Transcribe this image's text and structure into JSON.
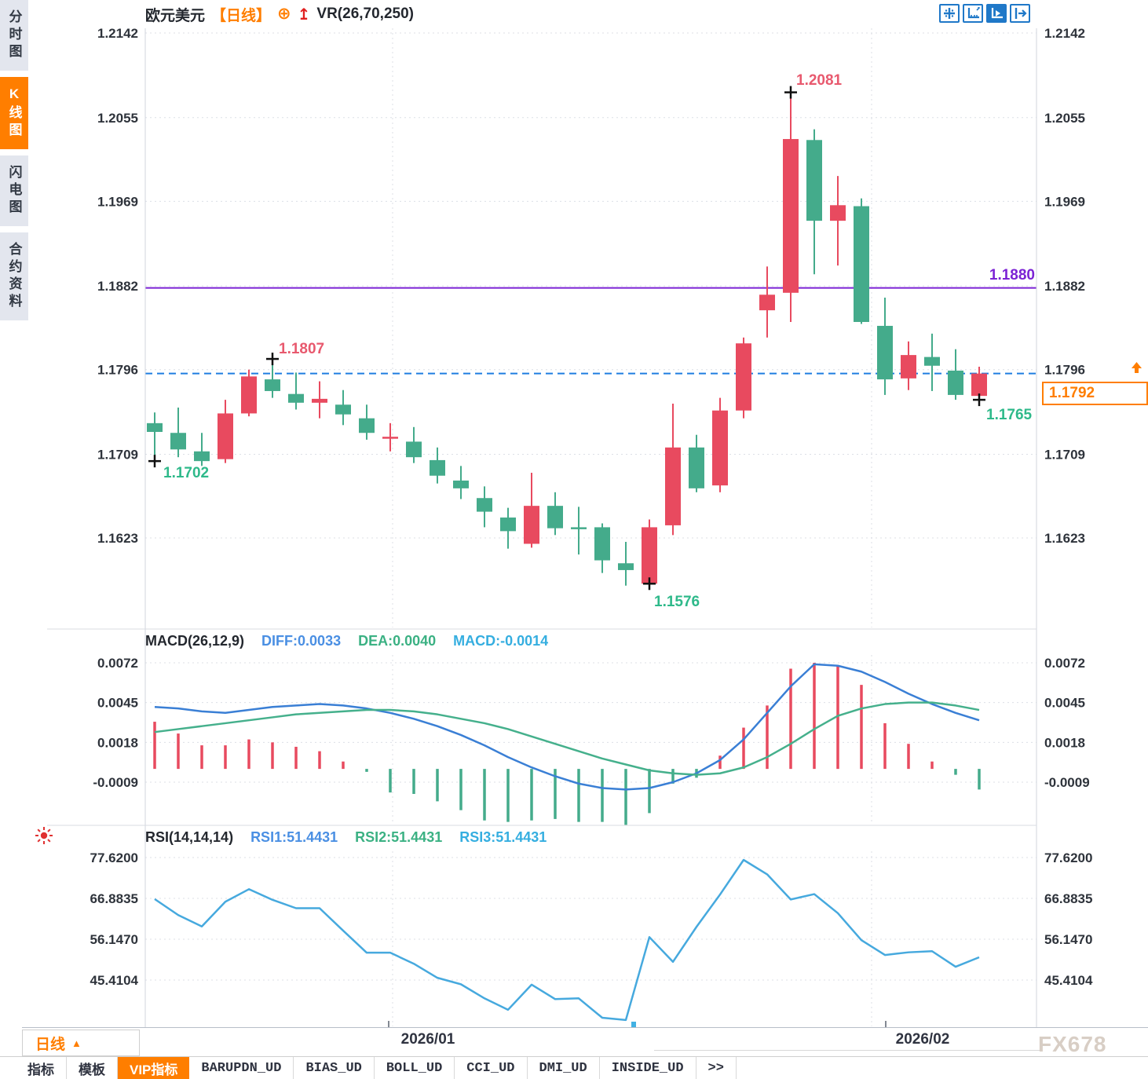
{
  "header": {
    "symbol": "欧元美元",
    "period": "【日线】",
    "indicator": "VR(26,70,250)"
  },
  "sidebar": {
    "items": [
      {
        "label": "分时图",
        "active": false
      },
      {
        "label": "K线图",
        "active": true
      },
      {
        "label": "闪电图",
        "active": false
      },
      {
        "label": "合约资料",
        "active": false
      }
    ]
  },
  "toolbar": {
    "icons": [
      "crosshair-move",
      "axis-range",
      "axis-play-active",
      "pan-to-latest"
    ]
  },
  "macd_panel": {
    "title": "MACD(26,12,9)",
    "diff_label": "DIFF:0.0033",
    "dea_label": "DEA:0.0040",
    "macd_label": "MACD:-0.0014"
  },
  "rsi_panel": {
    "title": "RSI(14,14,14)",
    "rsi1_label": "RSI1:51.4431",
    "rsi2_label": "RSI2:51.4431",
    "rsi3_label": "RSI3:51.4431"
  },
  "x_axis": {
    "dates": [
      "2026/01",
      "2026/02"
    ]
  },
  "period_selector": {
    "label": "日线",
    "arrow": "▲"
  },
  "bottom_tabs": [
    {
      "label": "指标",
      "active": false
    },
    {
      "label": "模板",
      "active": false
    },
    {
      "label": "VIP指标",
      "active": true
    },
    {
      "label": "BARUPDN_UD",
      "active": false
    },
    {
      "label": "BIAS_UD",
      "active": false
    },
    {
      "label": "BOLL_UD",
      "active": false
    },
    {
      "label": "CCI_UD",
      "active": false
    },
    {
      "label": "DMI_UD",
      "active": false
    },
    {
      "label": "INSIDE_UD",
      "active": false
    },
    {
      "label": ">>",
      "active": false
    }
  ],
  "watermark": "FX678",
  "colors": {
    "up": "#e84a5f",
    "down": "#44ab8b",
    "diff_line": "#3a7fd5",
    "dea_line": "#45b08c",
    "rsi_line": "#46a9de",
    "orange": "#ff7e00",
    "purple": "#7b22d4",
    "last_price_line": "#1f7de0",
    "grid": "#dcdfe6",
    "axis_text": "#2e333b"
  },
  "chart_data": [
    {
      "type": "candlestick",
      "title": "欧元美元 日线",
      "ylim": [
        1.155,
        1.216
      ],
      "y_ticks": [
        1.2142,
        1.2055,
        1.1969,
        1.1882,
        1.1796,
        1.1709,
        1.1623
      ],
      "y_tick_labels": [
        "1.2142",
        "1.2055",
        "1.1969",
        "1.1882",
        "1.1796",
        "1.1709",
        "1.1623"
      ],
      "x_tick_labels": [
        "2026/01",
        "2026/02"
      ],
      "levels": {
        "horizontal_line": 1.188,
        "horizontal_line_label": "1.1880",
        "last_price": 1.1792,
        "last_price_label": "1.1792"
      },
      "series": {
        "open": [
          1.1741,
          1.1731,
          1.1712,
          1.1704,
          1.1751,
          1.1786,
          1.1771,
          1.1762,
          1.176,
          1.1746,
          1.1725,
          1.1722,
          1.1703,
          1.1682,
          1.1664,
          1.1644,
          1.1617,
          1.1656,
          1.1634,
          1.1634,
          1.1597,
          1.1576,
          1.1636,
          1.1716,
          1.1677,
          1.1754,
          1.1857,
          1.1875,
          1.2032,
          1.1949,
          1.1964,
          1.1841,
          1.1787,
          1.1809,
          1.1795,
          1.1769
        ],
        "high": [
          1.1752,
          1.1757,
          1.1731,
          1.1765,
          1.1796,
          1.1807,
          1.1793,
          1.1784,
          1.1775,
          1.176,
          1.1741,
          1.1737,
          1.1716,
          1.1697,
          1.1676,
          1.1654,
          1.169,
          1.167,
          1.1655,
          1.1638,
          1.1619,
          1.1642,
          1.1761,
          1.1729,
          1.1767,
          1.1829,
          1.1902,
          1.2081,
          1.2043,
          1.1995,
          1.1972,
          1.187,
          1.1825,
          1.1833,
          1.1817,
          1.1799
        ],
        "low": [
          1.1702,
          1.1706,
          1.1697,
          1.17,
          1.1748,
          1.1767,
          1.1755,
          1.1746,
          1.1739,
          1.1724,
          1.1712,
          1.17,
          1.1679,
          1.1663,
          1.1634,
          1.1612,
          1.1613,
          1.1626,
          1.1606,
          1.1587,
          1.1574,
          1.1576,
          1.1626,
          1.167,
          1.167,
          1.1746,
          1.1829,
          1.1845,
          1.1894,
          1.1903,
          1.1843,
          1.177,
          1.1775,
          1.1774,
          1.1765,
          1.1765
        ],
        "close": [
          1.1732,
          1.1714,
          1.1702,
          1.1751,
          1.1789,
          1.1774,
          1.1762,
          1.1766,
          1.175,
          1.1731,
          1.1727,
          1.1706,
          1.1687,
          1.1674,
          1.165,
          1.163,
          1.1656,
          1.1633,
          1.1633,
          1.16,
          1.159,
          1.1634,
          1.1716,
          1.1674,
          1.1754,
          1.1823,
          1.1873,
          1.2033,
          1.1949,
          1.1965,
          1.1845,
          1.1786,
          1.1811,
          1.18,
          1.177,
          1.1792
        ]
      },
      "annotations": [
        {
          "index": 0,
          "price": 1.1702,
          "text": "1.1702",
          "kind": "low"
        },
        {
          "index": 5,
          "price": 1.1807,
          "text": "1.1807",
          "kind": "high"
        },
        {
          "index": 21,
          "price": 1.1576,
          "text": "1.1576",
          "kind": "low"
        },
        {
          "index": 27,
          "price": 1.2081,
          "text": "1.2081",
          "kind": "high"
        },
        {
          "index": 35,
          "price": 1.1765,
          "text": "1.1765",
          "kind": "low"
        }
      ]
    },
    {
      "type": "bar",
      "name": "MACD(26,12,9)",
      "diff_value": 0.0033,
      "dea_value": 0.004,
      "macd_value": -0.0014,
      "ylim": [
        -0.004,
        0.0075
      ],
      "y_ticks": [
        0.0072,
        0.0045,
        0.0018,
        -0.0009
      ],
      "y_tick_labels": [
        "0.0072",
        "0.0045",
        "0.0018",
        "-0.0009"
      ],
      "histogram": [
        0.0032,
        0.0024,
        0.0016,
        0.0016,
        0.002,
        0.0018,
        0.0015,
        0.0012,
        0.0005,
        -0.0002,
        -0.0016,
        -0.0017,
        -0.0022,
        -0.0028,
        -0.0035,
        -0.0036,
        -0.0035,
        -0.0034,
        -0.0036,
        -0.0036,
        -0.0038,
        -0.003,
        -0.001,
        -0.0006,
        0.0009,
        0.0028,
        0.0043,
        0.0068,
        0.0072,
        0.007,
        0.0057,
        0.0031,
        0.0017,
        0.0005,
        -0.0004,
        -0.0014
      ],
      "diff": [
        0.0042,
        0.0041,
        0.0039,
        0.0038,
        0.004,
        0.0042,
        0.0043,
        0.0044,
        0.0043,
        0.0041,
        0.0038,
        0.0034,
        0.0029,
        0.0023,
        0.0016,
        0.0008,
        0.0001,
        -0.0005,
        -0.001,
        -0.0013,
        -0.0014,
        -0.0013,
        -0.0009,
        -0.0003,
        0.0006,
        0.002,
        0.0038,
        0.0056,
        0.0071,
        0.007,
        0.0066,
        0.0059,
        0.0051,
        0.0044,
        0.0038,
        0.0033
      ],
      "dea": [
        0.0025,
        0.0027,
        0.0029,
        0.0031,
        0.0033,
        0.0035,
        0.0037,
        0.0038,
        0.0039,
        0.004,
        0.004,
        0.0039,
        0.0037,
        0.0034,
        0.0031,
        0.0027,
        0.0022,
        0.0017,
        0.0012,
        0.0007,
        0.0003,
        -0.0001,
        -0.0003,
        -0.0004,
        -0.0003,
        0.0001,
        0.0008,
        0.0017,
        0.0027,
        0.0036,
        0.0041,
        0.0044,
        0.0045,
        0.0045,
        0.0043,
        0.004
      ]
    },
    {
      "type": "line",
      "name": "RSI(14,14,14)",
      "rsi_values": [
        51.4431,
        51.4431,
        51.4431
      ],
      "ylim": [
        30,
        80
      ],
      "y_ticks": [
        77.62,
        66.8835,
        56.147,
        45.4104
      ],
      "y_tick_labels": [
        "77.6200",
        "66.8835",
        "56.1470",
        "45.4104"
      ],
      "values": [
        66.7,
        62.5,
        59.5,
        66.0,
        69.3,
        66.5,
        64.3,
        64.3,
        58.4,
        52.6,
        52.6,
        49.7,
        46.0,
        44.3,
        40.6,
        37.6,
        44.2,
        40.4,
        40.6,
        35.5,
        34.9,
        56.7,
        50.2,
        59.4,
        67.9,
        77.0,
        73.2,
        66.6,
        68.0,
        63.0,
        55.9,
        52.0,
        52.7,
        53.0,
        48.9,
        51.4
      ]
    }
  ]
}
